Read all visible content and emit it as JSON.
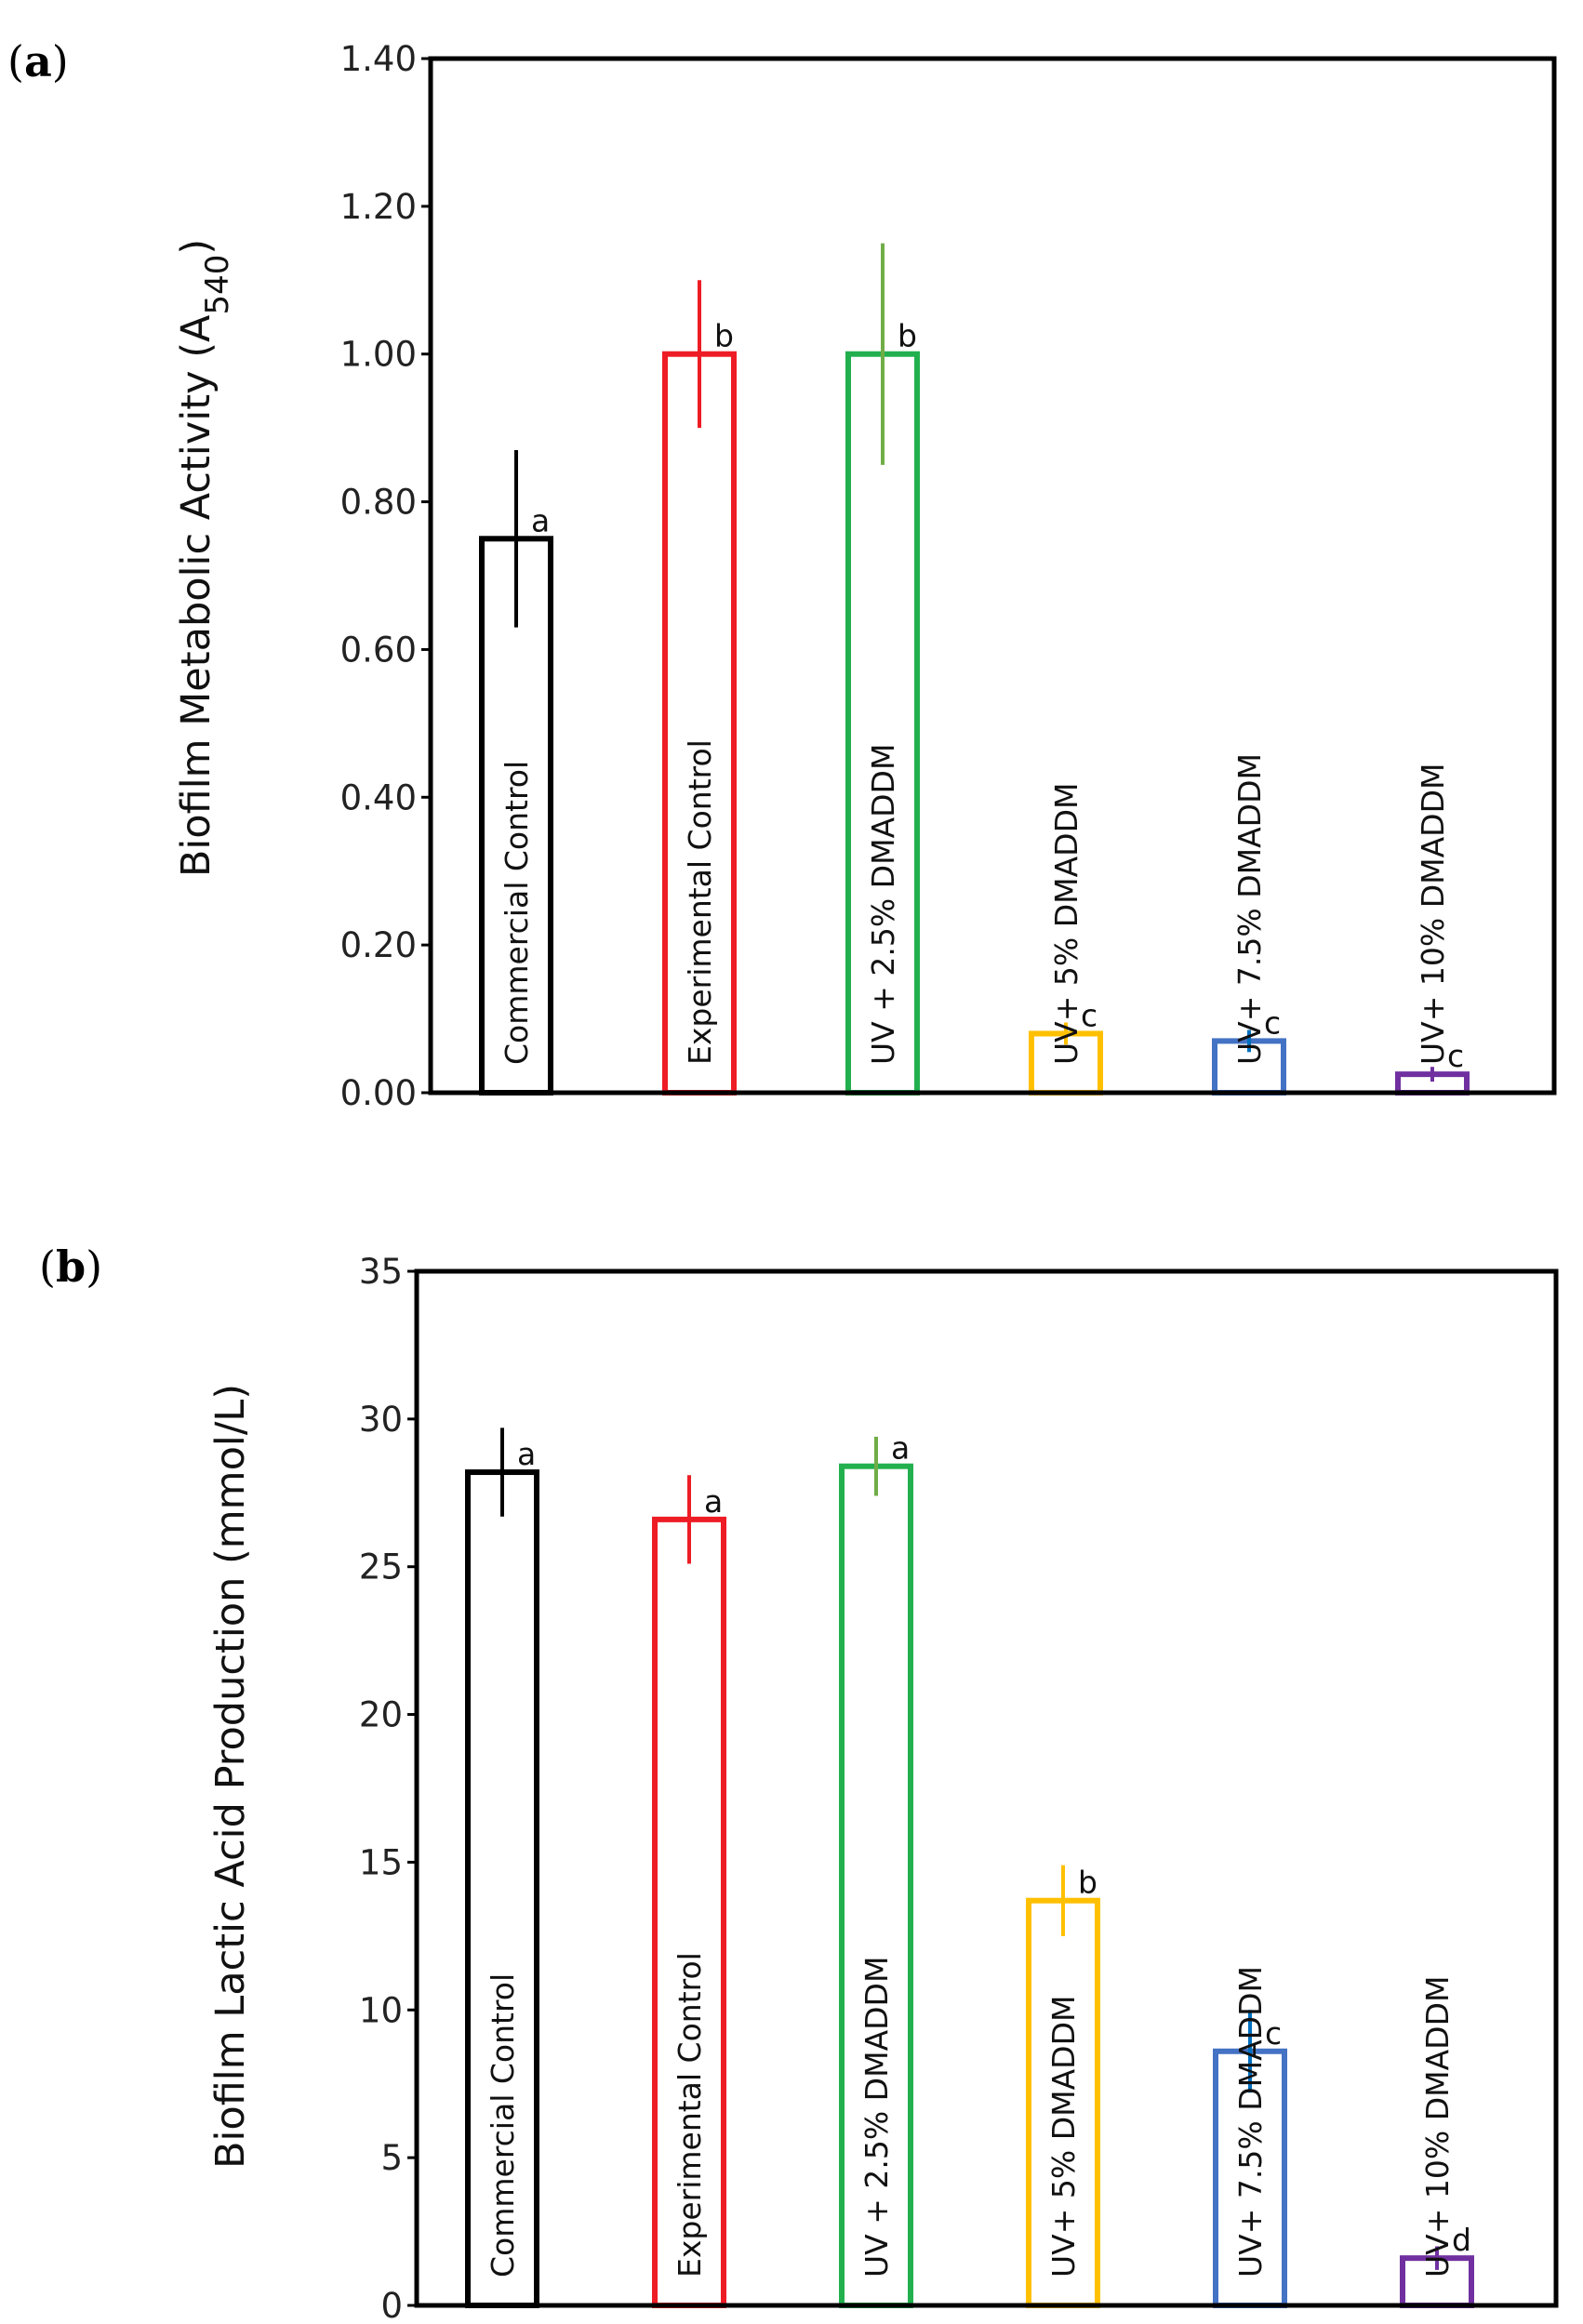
{
  "chart_data": [
    {
      "panel": "(a)",
      "panel_letter": "a",
      "type": "bar",
      "ylabel": "Biofilm Metabolic Activity (A",
      "ylabel_sub": "540",
      "ylabel_close": ")",
      "ylim": [
        0,
        1.4
      ],
      "yticks": [
        "0.00",
        "0.20",
        "0.40",
        "0.60",
        "0.80",
        "1.00",
        "1.20",
        "1.40"
      ],
      "categories": [
        "Commercial Control",
        "Experimental Control",
        "UV + 2.5% DMADDM",
        "UV+ 5% DMADDM",
        "UV+ 7.5% DMADDM",
        "UV+ 10% DMADDM"
      ],
      "values": [
        0.75,
        1.0,
        1.0,
        0.08,
        0.07,
        0.025
      ],
      "errors": [
        0.12,
        0.1,
        0.15,
        0.015,
        0.015,
        0.01
      ],
      "significance": [
        "a",
        "b",
        "b",
        "c",
        "c",
        "c"
      ],
      "colors": [
        "#000000",
        "#ee1c25",
        "#22b04e",
        "#ffc000",
        "#4472c4",
        "#7030a0"
      ],
      "error_colors": [
        "#000000",
        "#ee1c25",
        "#70ad47",
        "#ffc000",
        "#0070c0",
        "#7030a0"
      ]
    },
    {
      "panel": "(b)",
      "panel_letter": "b",
      "type": "bar",
      "ylabel": "Biofilm Lactic Acid Production (mmol/L)",
      "ylim": [
        0,
        35
      ],
      "yticks": [
        "0",
        "5",
        "10",
        "15",
        "20",
        "25",
        "30",
        "35"
      ],
      "categories": [
        "Commercial Control",
        "Experimental Control",
        "UV + 2.5% DMADDM",
        "UV+ 5% DMADDM",
        "UV+ 7.5% DMADDM",
        "UV+ 10% DMADDM"
      ],
      "values": [
        28.2,
        26.6,
        28.4,
        13.7,
        8.6,
        1.6
      ],
      "errors": [
        1.5,
        1.5,
        1.0,
        1.2,
        1.4,
        0.4
      ],
      "significance": [
        "a",
        "a",
        "a",
        "b",
        "c",
        "d"
      ],
      "colors": [
        "#000000",
        "#ee1c25",
        "#22b04e",
        "#ffc000",
        "#4472c4",
        "#7030a0"
      ],
      "error_colors": [
        "#000000",
        "#ee1c25",
        "#70ad47",
        "#ffc000",
        "#0070c0",
        "#7030a0"
      ]
    }
  ]
}
